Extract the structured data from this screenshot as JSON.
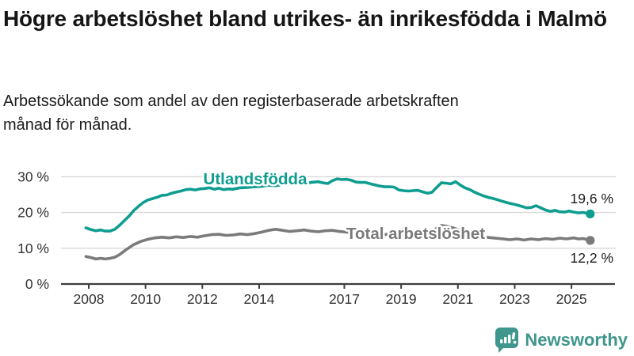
{
  "header": {
    "title": "Högre arbetslöshet bland utrikes- än inrikesfödda i Malmö",
    "subtitle": "Arbetssökande som andel av den registerbaserade arbetskraften månad för månad."
  },
  "footer": {
    "brand": "Newsworthy"
  },
  "colors": {
    "series_utlandsfodda": "#0e9d90",
    "series_total": "#7a7a7a",
    "grid": "#d8d8d8",
    "axis": "#3d3d3d",
    "tick_text": "#333333",
    "end_label_text": "#1a1a1a",
    "logo_teal": "#3f968c"
  },
  "chart_data": {
    "type": "line",
    "title": "Högre arbetslöshet bland utrikes- än inrikesfödda i Malmö",
    "subtitle": "Arbetssökande som andel av den registerbaserade arbetskraften månad för månad.",
    "xlabel": "",
    "ylabel": "",
    "grid": "horizontal",
    "legend_position": "inline-labels",
    "x_axis": {
      "ticks": [
        2008,
        2010,
        2012,
        2014,
        2017,
        2019,
        2021,
        2023,
        2025
      ],
      "range": [
        2007.0,
        2026.5
      ]
    },
    "y_axis": {
      "ticks": [
        0,
        10,
        20,
        30
      ],
      "tick_suffix": " %",
      "ylim": [
        0,
        32
      ]
    },
    "series": [
      {
        "name": "Utlandsfödda",
        "color": "#0e9d90",
        "end_value": 19.6,
        "end_label": "19,6 %",
        "points": [
          [
            2007.9,
            15.7
          ],
          [
            2008.08,
            15.2
          ],
          [
            2008.25,
            14.9
          ],
          [
            2008.42,
            15.1
          ],
          [
            2008.58,
            14.8
          ],
          [
            2008.75,
            14.8
          ],
          [
            2008.92,
            15.3
          ],
          [
            2009.08,
            16.4
          ],
          [
            2009.25,
            17.7
          ],
          [
            2009.42,
            19.0
          ],
          [
            2009.58,
            20.5
          ],
          [
            2009.75,
            21.7
          ],
          [
            2009.92,
            22.8
          ],
          [
            2010.08,
            23.5
          ],
          [
            2010.25,
            23.9
          ],
          [
            2010.42,
            24.3
          ],
          [
            2010.58,
            24.8
          ],
          [
            2010.75,
            24.9
          ],
          [
            2010.92,
            25.4
          ],
          [
            2011.08,
            25.7
          ],
          [
            2011.25,
            26.0
          ],
          [
            2011.42,
            26.4
          ],
          [
            2011.58,
            26.5
          ],
          [
            2011.75,
            26.3
          ],
          [
            2011.92,
            26.6
          ],
          [
            2012.08,
            26.7
          ],
          [
            2012.25,
            26.9
          ],
          [
            2012.42,
            26.5
          ],
          [
            2012.58,
            26.8
          ],
          [
            2012.75,
            26.4
          ],
          [
            2012.92,
            26.6
          ],
          [
            2013.08,
            26.5
          ],
          [
            2013.33,
            26.9
          ],
          [
            2013.58,
            27.0
          ],
          [
            2013.83,
            27.2
          ],
          [
            2014.08,
            27.3
          ],
          [
            2014.33,
            27.6
          ],
          [
            2014.58,
            27.5
          ],
          [
            2014.83,
            27.8
          ],
          [
            2015.08,
            28.0
          ],
          [
            2015.33,
            28.2
          ],
          [
            2015.58,
            28.1
          ],
          [
            2015.83,
            28.4
          ],
          [
            2016.08,
            28.6
          ],
          [
            2016.25,
            28.3
          ],
          [
            2016.42,
            28.1
          ],
          [
            2016.58,
            28.9
          ],
          [
            2016.75,
            29.4
          ],
          [
            2016.92,
            29.2
          ],
          [
            2017.08,
            29.3
          ],
          [
            2017.25,
            29.0
          ],
          [
            2017.42,
            28.5
          ],
          [
            2017.58,
            28.4
          ],
          [
            2017.75,
            28.4
          ],
          [
            2017.92,
            28.0
          ],
          [
            2018.08,
            27.7
          ],
          [
            2018.25,
            27.4
          ],
          [
            2018.42,
            27.2
          ],
          [
            2018.58,
            27.2
          ],
          [
            2018.75,
            27.1
          ],
          [
            2018.92,
            26.3
          ],
          [
            2019.08,
            26.1
          ],
          [
            2019.25,
            26.0
          ],
          [
            2019.42,
            26.1
          ],
          [
            2019.58,
            26.2
          ],
          [
            2019.75,
            25.8
          ],
          [
            2019.92,
            25.4
          ],
          [
            2020.08,
            25.6
          ],
          [
            2020.25,
            27.0
          ],
          [
            2020.42,
            28.3
          ],
          [
            2020.58,
            28.2
          ],
          [
            2020.75,
            28.0
          ],
          [
            2020.92,
            28.6
          ],
          [
            2021.08,
            27.7
          ],
          [
            2021.25,
            26.9
          ],
          [
            2021.42,
            26.4
          ],
          [
            2021.58,
            25.7
          ],
          [
            2021.75,
            25.1
          ],
          [
            2021.92,
            24.6
          ],
          [
            2022.08,
            24.2
          ],
          [
            2022.25,
            23.9
          ],
          [
            2022.42,
            23.5
          ],
          [
            2022.58,
            23.1
          ],
          [
            2022.75,
            22.7
          ],
          [
            2022.92,
            22.4
          ],
          [
            2023.08,
            22.1
          ],
          [
            2023.25,
            21.7
          ],
          [
            2023.42,
            21.3
          ],
          [
            2023.58,
            21.4
          ],
          [
            2023.75,
            21.9
          ],
          [
            2023.92,
            21.3
          ],
          [
            2024.08,
            20.7
          ],
          [
            2024.25,
            20.3
          ],
          [
            2024.42,
            20.6
          ],
          [
            2024.58,
            20.2
          ],
          [
            2024.75,
            20.1
          ],
          [
            2024.92,
            20.4
          ],
          [
            2025.08,
            20.1
          ],
          [
            2025.25,
            19.9
          ],
          [
            2025.42,
            20.0
          ],
          [
            2025.66,
            19.6
          ]
        ]
      },
      {
        "name": "Total arbetslöshet",
        "color": "#7a7a7a",
        "end_value": 12.2,
        "end_label": "12,2 %",
        "points": [
          [
            2007.9,
            7.7
          ],
          [
            2008.08,
            7.4
          ],
          [
            2008.25,
            7.0
          ],
          [
            2008.42,
            7.2
          ],
          [
            2008.58,
            7.0
          ],
          [
            2008.75,
            7.2
          ],
          [
            2008.92,
            7.5
          ],
          [
            2009.08,
            8.2
          ],
          [
            2009.33,
            9.7
          ],
          [
            2009.58,
            11.0
          ],
          [
            2009.83,
            11.9
          ],
          [
            2010.08,
            12.5
          ],
          [
            2010.33,
            12.9
          ],
          [
            2010.58,
            13.1
          ],
          [
            2010.83,
            12.9
          ],
          [
            2011.08,
            13.2
          ],
          [
            2011.33,
            13.0
          ],
          [
            2011.58,
            13.3
          ],
          [
            2011.83,
            13.1
          ],
          [
            2012.08,
            13.5
          ],
          [
            2012.33,
            13.8
          ],
          [
            2012.58,
            13.9
          ],
          [
            2012.83,
            13.6
          ],
          [
            2013.08,
            13.7
          ],
          [
            2013.33,
            14.0
          ],
          [
            2013.58,
            13.8
          ],
          [
            2013.83,
            14.1
          ],
          [
            2014.08,
            14.5
          ],
          [
            2014.33,
            15.0
          ],
          [
            2014.58,
            15.3
          ],
          [
            2014.83,
            15.0
          ],
          [
            2015.08,
            14.7
          ],
          [
            2015.33,
            14.9
          ],
          [
            2015.58,
            15.1
          ],
          [
            2015.83,
            14.8
          ],
          [
            2016.08,
            14.6
          ],
          [
            2016.33,
            14.9
          ],
          [
            2016.58,
            15.0
          ],
          [
            2016.83,
            14.7
          ],
          [
            2017.08,
            14.5
          ],
          [
            2017.33,
            14.3
          ],
          [
            2017.58,
            14.1
          ],
          [
            2017.83,
            14.2
          ],
          [
            2018.08,
            14.0
          ],
          [
            2018.33,
            13.8
          ],
          [
            2018.58,
            13.9
          ],
          [
            2018.83,
            13.7
          ],
          [
            2019.08,
            13.6
          ],
          [
            2019.33,
            13.4
          ],
          [
            2019.58,
            13.5
          ],
          [
            2019.83,
            13.7
          ],
          [
            2020.08,
            14.2
          ],
          [
            2020.25,
            15.6
          ],
          [
            2020.42,
            16.4
          ],
          [
            2020.58,
            16.2
          ],
          [
            2020.83,
            15.7
          ],
          [
            2021.08,
            15.0
          ],
          [
            2021.33,
            14.4
          ],
          [
            2021.58,
            13.8
          ],
          [
            2021.83,
            13.3
          ],
          [
            2022.08,
            13.0
          ],
          [
            2022.33,
            12.8
          ],
          [
            2022.58,
            12.6
          ],
          [
            2022.83,
            12.4
          ],
          [
            2023.08,
            12.6
          ],
          [
            2023.33,
            12.3
          ],
          [
            2023.58,
            12.6
          ],
          [
            2023.83,
            12.4
          ],
          [
            2024.08,
            12.7
          ],
          [
            2024.33,
            12.5
          ],
          [
            2024.58,
            12.8
          ],
          [
            2024.83,
            12.6
          ],
          [
            2025.08,
            12.9
          ],
          [
            2025.25,
            12.6
          ],
          [
            2025.42,
            12.7
          ],
          [
            2025.66,
            12.2
          ]
        ]
      }
    ]
  }
}
